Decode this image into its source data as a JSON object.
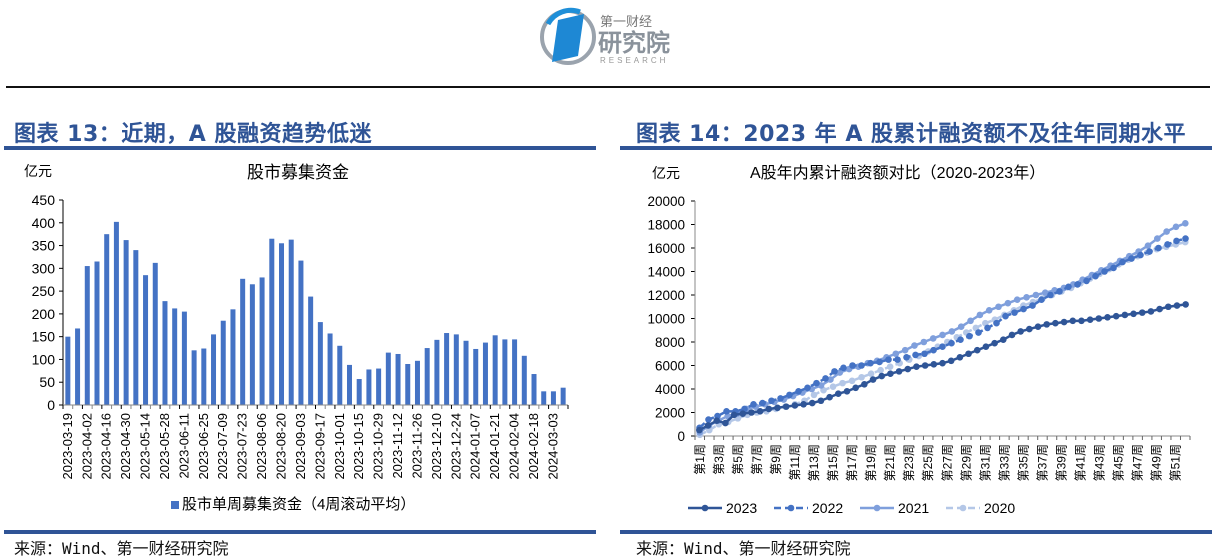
{
  "header": {
    "logo": {
      "icon": "research-institute-logo-icon",
      "line1": "第一财经",
      "line2": "研究院",
      "line3": "RESEARCH"
    }
  },
  "panels": [
    {
      "title": "图表 13：近期，A 股融资趋势低迷",
      "source": "来源：Wind、第一财经研究院"
    },
    {
      "title": "图表 14：2023 年 A 股累计融资额不及往年同期水平",
      "source": "来源：Wind、第一财经研究院"
    }
  ],
  "chart_data": [
    {
      "type": "bar",
      "title": "股市募集资金",
      "ylabel": "亿元",
      "xlabel": "",
      "ylim": [
        0,
        450
      ],
      "yticks": [
        0,
        50,
        100,
        150,
        200,
        250,
        300,
        350,
        400,
        450
      ],
      "grid": false,
      "legend_position": "bottom",
      "tick_labels": [
        "2023-03-19",
        "2023-04-02",
        "2023-04-16",
        "2023-04-30",
        "2023-05-14",
        "2023-05-28",
        "2023-06-11",
        "2023-06-25",
        "2023-07-09",
        "2023-07-23",
        "2023-08-06",
        "2023-08-20",
        "2023-09-03",
        "2023-09-17",
        "2023-10-01",
        "2023-10-15",
        "2023-10-29",
        "2023-11-12",
        "2023-11-26",
        "2023-12-10",
        "2023-12-24",
        "2024-01-07",
        "2024-01-21",
        "2024-02-04",
        "2024-02-18",
        "2024-03-03"
      ],
      "series": [
        {
          "name": "股市单周募集资金（4周滚动平均）",
          "color": "#4472c4",
          "values": [
            150,
            168,
            305,
            315,
            375,
            402,
            362,
            340,
            285,
            312,
            228,
            212,
            205,
            120,
            124,
            155,
            185,
            210,
            277,
            265,
            280,
            365,
            355,
            363,
            317,
            238,
            182,
            157,
            130,
            88,
            57,
            78,
            80,
            115,
            112,
            90,
            97,
            125,
            143,
            158,
            155,
            141,
            123,
            137,
            153,
            144,
            144,
            108,
            68,
            30,
            30,
            38
          ]
        }
      ]
    },
    {
      "type": "line",
      "title": "A股年内累计融资额对比（2020-2023年）",
      "ylabel": "亿元",
      "xlabel": "",
      "ylim": [
        0,
        20000
      ],
      "yticks": [
        0,
        2000,
        4000,
        6000,
        8000,
        10000,
        12000,
        14000,
        16000,
        18000,
        20000
      ],
      "grid": false,
      "legend_position": "bottom",
      "tick_labels": [
        "第1周",
        "第3周",
        "第5周",
        "第7周",
        "第9周",
        "第11周",
        "第13周",
        "第15周",
        "第17周",
        "第19周",
        "第21周",
        "第23周",
        "第25周",
        "第27周",
        "第29周",
        "第31周",
        "第33周",
        "第35周",
        "第37周",
        "第39周",
        "第41周",
        "第43周",
        "第45周",
        "第47周",
        "第49周",
        "第51周"
      ],
      "series": [
        {
          "name": "2023",
          "color": "#2f5597",
          "dash": "solid",
          "values": [
            500,
            900,
            1300,
            1100,
            1800,
            1900,
            2000,
            2100,
            2300,
            2400,
            2500,
            2600,
            2700,
            2800,
            3000,
            3300,
            3600,
            3800,
            4100,
            4400,
            4800,
            5100,
            5300,
            5500,
            5700,
            5900,
            6000,
            6100,
            6200,
            6400,
            6700,
            7000,
            7300,
            7600,
            7900,
            8200,
            8600,
            8900,
            9100,
            9300,
            9500,
            9600,
            9700,
            9800,
            9800,
            9900,
            10000,
            10100,
            10200,
            10300,
            10400,
            10500,
            10600,
            10800,
            11000,
            11100,
            11200
          ]
        },
        {
          "name": "2022",
          "color": "#4472c4",
          "dash": "dashed",
          "values": [
            700,
            1400,
            1700,
            2100,
            2100,
            2300,
            2700,
            2800,
            3000,
            3200,
            3500,
            3800,
            4100,
            4500,
            4900,
            5500,
            5800,
            6000,
            6000,
            6200,
            6300,
            6500,
            6500,
            6700,
            6900,
            7000,
            7300,
            7600,
            7900,
            8200,
            8500,
            8800,
            9200,
            9600,
            10200,
            10500,
            10800,
            11100,
            11600,
            12000,
            12300,
            12700,
            12900,
            13200,
            13600,
            14000,
            14300,
            14800,
            15100,
            15400,
            15700,
            16000,
            16300,
            16600,
            16800
          ]
        },
        {
          "name": "2021",
          "color": "#7f9fdc",
          "dash": "solid",
          "values": [
            300,
            900,
            1300,
            1700,
            1900,
            2300,
            2500,
            2700,
            2900,
            3100,
            3400,
            3700,
            4000,
            4300,
            4800,
            5400,
            5700,
            5900,
            6200,
            6400,
            6700,
            7000,
            7300,
            7700,
            8000,
            8300,
            8600,
            8900,
            9300,
            9800,
            10300,
            10700,
            11000,
            11300,
            11600,
            11800,
            12000,
            12200,
            12400,
            12600,
            12900,
            13300,
            13700,
            14100,
            14500,
            14900,
            15300,
            15700,
            16200,
            16800,
            17400,
            17800,
            18100
          ]
        },
        {
          "name": "2020",
          "color": "#b4c7e7",
          "dash": "dashed",
          "values": [
            100,
            500,
            1000,
            1200,
            1500,
            1800,
            2000,
            2100,
            2300,
            2500,
            2700,
            3000,
            3500,
            3900,
            4200,
            4500,
            4700,
            5000,
            5300,
            5600,
            5900,
            6200,
            6500,
            6800,
            7200,
            7600,
            8000,
            8400,
            8800,
            9200,
            9600,
            9900,
            10300,
            10700,
            11100,
            11400,
            11700,
            12000,
            12300,
            12600,
            13000,
            13400,
            13800,
            14200,
            14600,
            15000,
            15300,
            15600,
            15900,
            16100,
            16300,
            16500
          ]
        }
      ]
    }
  ]
}
